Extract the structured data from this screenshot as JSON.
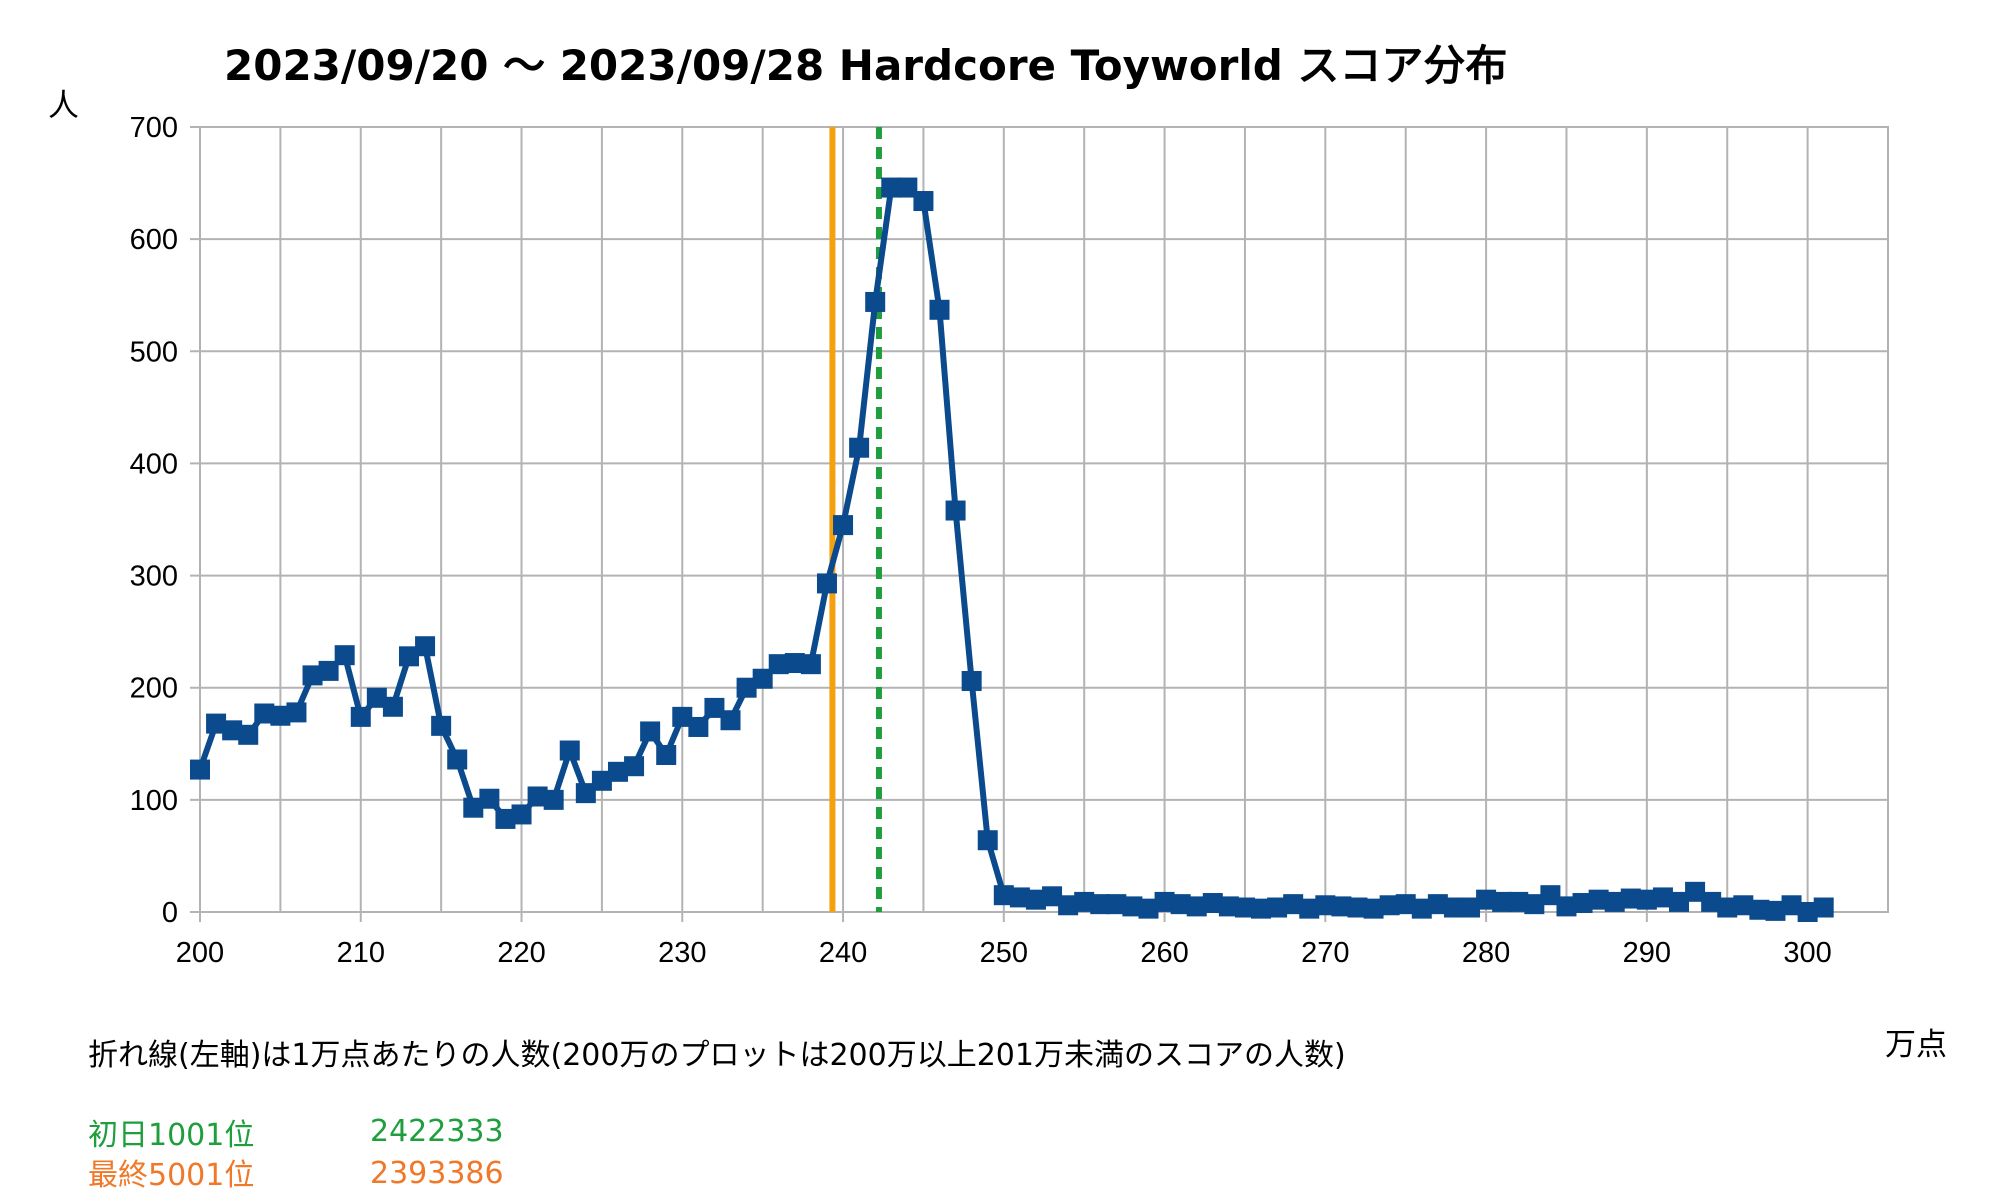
{
  "chart_data": {
    "type": "line",
    "title": "2023/09/20 ～ 2023/09/28 Hardcore Toyworld スコア分布",
    "ylabel": "人",
    "xlabel": "万点",
    "xlim": [
      200,
      305
    ],
    "ylim": [
      0,
      700
    ],
    "x_ticks": [
      200,
      210,
      220,
      230,
      240,
      250,
      260,
      270,
      280,
      290,
      300
    ],
    "y_ticks": [
      0,
      100,
      200,
      300,
      400,
      500,
      600,
      700
    ],
    "grid": true,
    "x": [
      200,
      201,
      202,
      203,
      204,
      205,
      206,
      207,
      208,
      209,
      210,
      211,
      212,
      213,
      214,
      215,
      216,
      217,
      218,
      219,
      220,
      221,
      222,
      223,
      224,
      225,
      226,
      227,
      228,
      229,
      230,
      231,
      232,
      233,
      234,
      235,
      236,
      237,
      238,
      239,
      240,
      241,
      242,
      243,
      244,
      245,
      246,
      247,
      248,
      249,
      250,
      251,
      252,
      253,
      254,
      255,
      256,
      257,
      258,
      259,
      260,
      261,
      262,
      263,
      264,
      265,
      266,
      267,
      268,
      269,
      270,
      271,
      272,
      273,
      274,
      275,
      276,
      277,
      278,
      279,
      280,
      281,
      282,
      283,
      284,
      285,
      286,
      287,
      288,
      289,
      290,
      291,
      292,
      293,
      294,
      295,
      296,
      297,
      298,
      299,
      300,
      301
    ],
    "series": [
      {
        "color": "#0b4a8c",
        "values": [
          127,
          168,
          162,
          158,
          177,
          175,
          178,
          211,
          215,
          229,
          174,
          191,
          183,
          228,
          237,
          166,
          136,
          93,
          101,
          83,
          87,
          103,
          100,
          144,
          106,
          117,
          125,
          130,
          161,
          140,
          174,
          165,
          182,
          171,
          200,
          208,
          221,
          222,
          221,
          293,
          345,
          414,
          544,
          646,
          646,
          634,
          537,
          358,
          206,
          64,
          15,
          13,
          11,
          14,
          6,
          9,
          7,
          7,
          5,
          3,
          9,
          7,
          5,
          8,
          5,
          4,
          3,
          4,
          7,
          3,
          6,
          5,
          4,
          3,
          6,
          7,
          3,
          7,
          4,
          4,
          11,
          9,
          9,
          7,
          15,
          5,
          8,
          11,
          9,
          12,
          11,
          13,
          9,
          18,
          9,
          4,
          6,
          2,
          1,
          6,
          0,
          4
        ]
      }
    ],
    "vlines": [
      {
        "x": 239.3386,
        "color": "#f5a00f",
        "style": "solid"
      },
      {
        "x": 242.2333,
        "color": "#1e9e3c",
        "style": "dashed"
      }
    ],
    "annotations": {
      "note": "折れ線(左軸)は1万点あたりの人数(200万のプロットは200万以上201万未満のスコアの人数)",
      "first_day_label": "初日1001位",
      "first_day_value": "2422333",
      "final_label": "最終5001位",
      "final_value": "2393386"
    }
  }
}
